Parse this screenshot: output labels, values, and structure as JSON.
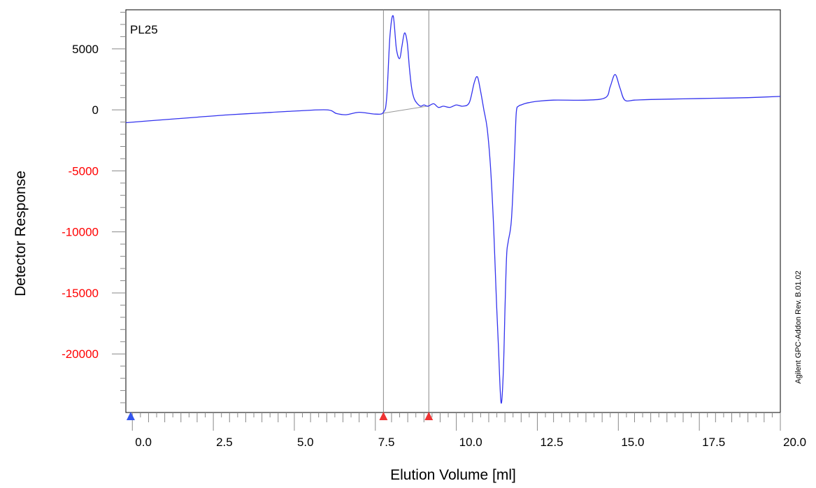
{
  "chart_data": {
    "type": "line",
    "title": "",
    "sample_label": "PL25",
    "xlabel": "Elution Volume [ml]",
    "ylabel": "Detector Response",
    "side_text": "Agilent GPC-Addon  Rev. B.01.02",
    "xlim": [
      -0.2,
      20.0
    ],
    "ylim": [
      -24800,
      8200
    ],
    "x_ticks": [
      {
        "value": 0,
        "label": "0.0"
      },
      {
        "value": 2.5,
        "label": "2.5"
      },
      {
        "value": 5,
        "label": "5.0"
      },
      {
        "value": 7.5,
        "label": "7.5"
      },
      {
        "value": 10,
        "label": "10.0"
      },
      {
        "value": 12.5,
        "label": "12.5"
      },
      {
        "value": 15,
        "label": "15.0"
      },
      {
        "value": 17.5,
        "label": "17.5"
      },
      {
        "value": 20,
        "label": "20.0"
      }
    ],
    "y_ticks": [
      {
        "value": 5000,
        "label": "5000",
        "color": "#000000"
      },
      {
        "value": 0,
        "label": "0",
        "color": "#000000"
      },
      {
        "value": -5000,
        "label": "-5000",
        "color": "#ff0000"
      },
      {
        "value": -10000,
        "label": "-10000",
        "color": "#ff0000"
      },
      {
        "value": -15000,
        "label": "-15000",
        "color": "#ff0000"
      },
      {
        "value": -20000,
        "label": "-20000",
        "color": "#ff0000"
      }
    ],
    "grid": false,
    "colors": {
      "trace": "#3333ee",
      "frame": "#000000",
      "integration_lines": "#888888",
      "marker_start": "#3355ee",
      "marker_limits": "#ee3333"
    },
    "markers": [
      {
        "x": -0.05,
        "color": "blue"
      },
      {
        "x": 7.75,
        "color": "red"
      },
      {
        "x": 9.15,
        "color": "red"
      }
    ],
    "integration_limits": [
      7.75,
      9.15
    ],
    "baseline": {
      "x": [
        7.75,
        9.15
      ],
      "y": [
        -270,
        320
      ]
    },
    "series": [
      {
        "name": "",
        "x": [
          -0.2,
          1.0,
          2.0,
          3.0,
          4.0,
          5.0,
          6.0,
          6.3,
          6.6,
          7.0,
          7.5,
          7.75,
          7.85,
          7.95,
          8.05,
          8.15,
          8.25,
          8.32,
          8.4,
          8.48,
          8.55,
          8.62,
          8.7,
          8.8,
          8.9,
          9.0,
          9.1,
          9.15,
          9.3,
          9.45,
          9.6,
          9.8,
          10.0,
          10.2,
          10.4,
          10.55,
          10.65,
          10.75,
          10.85,
          10.95,
          11.05,
          11.15,
          11.22,
          11.3,
          11.38,
          11.45,
          11.5,
          11.55,
          11.6,
          11.7,
          11.8,
          11.85,
          11.92,
          12.0,
          12.1,
          12.25,
          12.5,
          13.0,
          14.0,
          14.6,
          14.75,
          14.9,
          15.05,
          15.2,
          15.5,
          16.0,
          17.0,
          18.0,
          19.0,
          20.0
        ],
        "y": [
          -1050,
          -800,
          -600,
          -400,
          -250,
          -100,
          0,
          -300,
          -400,
          -200,
          -350,
          -200,
          1000,
          6000,
          7700,
          5000,
          4200,
          5200,
          6300,
          5600,
          3500,
          1800,
          900,
          500,
          300,
          400,
          300,
          320,
          500,
          200,
          300,
          200,
          400,
          300,
          600,
          2200,
          2700,
          1500,
          0,
          -1500,
          -4500,
          -9500,
          -14500,
          -19500,
          -24000,
          -21500,
          -16500,
          -12000,
          -10800,
          -9000,
          -3500,
          -200,
          300,
          400,
          500,
          600,
          700,
          800,
          800,
          1000,
          1900,
          2900,
          1800,
          800,
          800,
          850,
          900,
          950,
          1000,
          1100
        ]
      }
    ]
  }
}
